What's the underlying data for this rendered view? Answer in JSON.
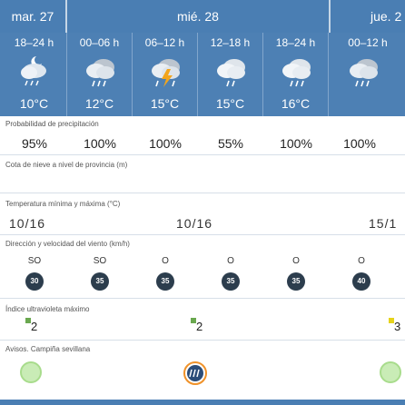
{
  "days": [
    {
      "label": "mar. 27"
    },
    {
      "label": "mié. 28"
    },
    {
      "label": "jue. 2"
    }
  ],
  "periods": [
    {
      "label": "18–24 h",
      "temp": "10°C",
      "icon": "cloud-rain-night-icon"
    },
    {
      "label": "00–06 h",
      "temp": "12°C",
      "icon": "cloud-rain-icon"
    },
    {
      "label": "06–12 h",
      "temp": "15°C",
      "icon": "cloud-rain-storm-icon"
    },
    {
      "label": "12–18 h",
      "temp": "15°C",
      "icon": "cloud-rain-icon"
    },
    {
      "label": "18–24 h",
      "temp": "16°C",
      "icon": "cloud-rain-icon"
    },
    {
      "label": "00–12 h",
      "temp": "",
      "icon": "cloud-rain-icon"
    }
  ],
  "sections": {
    "precip_title": "Probabilidad de precipitación",
    "precip_values": [
      "95%",
      "100%",
      "100%",
      "55%",
      "100%",
      "100%"
    ],
    "snow_title": "Cota de nieve a nivel de provincia (m)",
    "temp_title": "Temperatura mínima y máxima (°C)",
    "temp_values": [
      "10/16",
      "10/16",
      "15/1"
    ],
    "wind_title": "Dirección y velocidad del viento (km/h)",
    "wind_dirs": [
      "SO",
      "SO",
      "O",
      "O",
      "O",
      "O"
    ],
    "wind_speeds": [
      "30",
      "35",
      "35",
      "35",
      "35",
      "40"
    ],
    "uv_title": "Índice ultravioleta máximo",
    "uv_values": [
      "2",
      "2",
      "3"
    ],
    "avisos_title": "Avisos. Campiña sevillana"
  },
  "colors": {
    "header_bg": "#4a7eb3",
    "uv_low": "#6aa84f",
    "uv_moderate": "#e6d31a",
    "aviso_green": "#a8dc8c",
    "aviso_orange": "#f0922a"
  }
}
